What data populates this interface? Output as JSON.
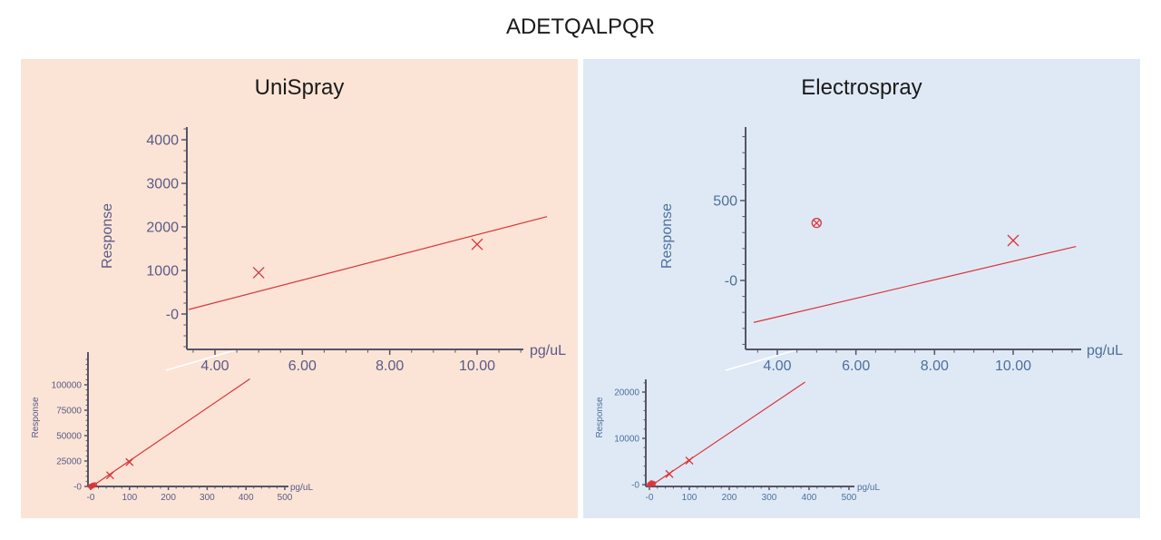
{
  "title": "ADETQALPQR",
  "colors": {
    "unispray_bg": "#fbe4d6",
    "electrospray_bg": "#dfe9f5",
    "fit_line": "#d9343a",
    "axis": "#555566",
    "unispray_label": "#5a5a86",
    "electrospray_label": "#4d6f9c"
  },
  "chart_data": [
    {
      "panel": "UniSpray",
      "view": "zoomed",
      "type": "scatter",
      "title": "UniSpray",
      "xlabel": "pg/uL",
      "ylabel": "Response",
      "xlim": [
        3.4,
        11.6
      ],
      "ylim": [
        -800,
        4300
      ],
      "x_ticks": [
        4.0,
        6.0,
        8.0,
        10.0
      ],
      "x_tick_labels": [
        "4.00",
        "6.00",
        "8.00",
        "10.00"
      ],
      "y_ticks": [
        0,
        1000,
        2000,
        3000,
        4000
      ],
      "y_tick_labels": [
        "-0",
        "1000",
        "2000",
        "3000",
        "4000"
      ],
      "points": [
        {
          "x": 5.0,
          "y": 950
        },
        {
          "x": 10.0,
          "y": 1600
        }
      ],
      "fit_line": {
        "slope": 260,
        "intercept": -780,
        "x_range": [
          3.4,
          11.6
        ]
      }
    },
    {
      "panel": "UniSpray",
      "view": "full",
      "type": "scatter",
      "xlabel": "pg/uL",
      "ylabel": "Response",
      "xlim": [
        -10,
        520
      ],
      "ylim": [
        -3000,
        125000
      ],
      "x_ticks": [
        0,
        100,
        200,
        300,
        400,
        500
      ],
      "x_tick_labels": [
        "-0",
        "100",
        "200",
        "300",
        "400",
        "500"
      ],
      "y_ticks": [
        0,
        25000,
        50000,
        75000,
        100000
      ],
      "y_tick_labels": [
        "-0",
        "25000",
        "50000",
        "75000",
        "100000"
      ],
      "points": [
        {
          "x": 50,
          "y": 11000
        },
        {
          "x": 100,
          "y": 24000
        }
      ],
      "cluster_points": [
        {
          "x": 0,
          "y": 0
        },
        {
          "x": 2,
          "y": 200
        },
        {
          "x": 4,
          "y": 600
        },
        {
          "x": 5,
          "y": 950
        },
        {
          "x": 10,
          "y": 1600
        }
      ],
      "fit_line": {
        "slope": 260,
        "intercept": -780,
        "x_range": [
          0,
          410
        ]
      }
    },
    {
      "panel": "Electrospray",
      "view": "zoomed",
      "type": "scatter",
      "title": "Electrospray",
      "xlabel": "pg/uL",
      "ylabel": "Response",
      "xlim": [
        3.4,
        11.6
      ],
      "ylim": [
        -450,
        950
      ],
      "x_ticks": [
        4.0,
        6.0,
        8.0,
        10.0
      ],
      "x_tick_labels": [
        "4.00",
        "6.00",
        "8.00",
        "10.00"
      ],
      "y_ticks": [
        0,
        500
      ],
      "y_tick_labels": [
        "-0",
        "500"
      ],
      "points": [
        {
          "x": 10.0,
          "y": 250
        }
      ],
      "excluded_points": [
        {
          "x": 5.0,
          "y": 360
        }
      ],
      "fit_line": {
        "slope": 58,
        "intercept": -460,
        "x_range": [
          3.4,
          11.6
        ]
      }
    },
    {
      "panel": "Electrospray",
      "view": "full",
      "type": "scatter",
      "xlabel": "pg/uL",
      "ylabel": "Response",
      "xlim": [
        -10,
        520
      ],
      "ylim": [
        -700,
        27000
      ],
      "x_ticks": [
        0,
        100,
        200,
        300,
        400,
        500
      ],
      "x_tick_labels": [
        "-0",
        "100",
        "200",
        "300",
        "400",
        "500"
      ],
      "y_ticks": [
        0,
        10000,
        20000
      ],
      "y_tick_labels": [
        "-0",
        "10000",
        "20000"
      ],
      "points": [
        {
          "x": 50,
          "y": 2300
        },
        {
          "x": 100,
          "y": 5200
        }
      ],
      "cluster_points": [
        {
          "x": 0,
          "y": 0
        },
        {
          "x": 2,
          "y": 100
        },
        {
          "x": 5,
          "y": 360
        },
        {
          "x": 10,
          "y": 250
        }
      ],
      "fit_line": {
        "slope": 58,
        "intercept": -460,
        "x_range": [
          0,
          390
        ]
      }
    }
  ]
}
